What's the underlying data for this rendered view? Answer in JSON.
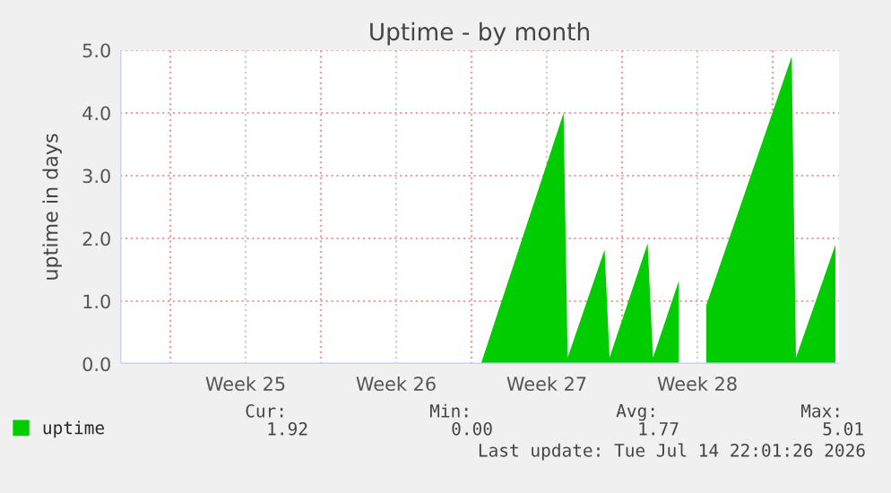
{
  "chart_data": {
    "type": "area",
    "title": "Uptime - by month",
    "ylabel": "uptime in days",
    "series": [
      {
        "name": "uptime",
        "color": "#00cc00",
        "x": [
          "2026-06-29T10:30",
          "2026-07-03T06:45",
          "2026-07-03T11:15",
          "2026-07-05T04:30",
          "2026-07-05T10:00",
          "2026-07-07T04:30",
          "2026-07-07T10:30",
          "2026-07-08T15:15",
          "2026-07-09T12:00",
          "2026-07-09T22:00",
          "2026-07-13T21:15",
          "2026-07-14T02:00",
          "2026-07-15T22:00"
        ],
        "values": [
          0,
          4.0,
          0.1,
          1.82,
          0.1,
          1.92,
          0.1,
          1.32,
          null,
          0.94,
          4.9,
          0.1,
          1.9
        ]
      }
    ],
    "xlim": [
      "2026-06-12T16:00",
      "2026-07-16T02:00"
    ],
    "xticks": [
      {
        "value": "2026-06-15",
        "label": null
      },
      {
        "value": "2026-06-18T12:00",
        "label": "Week 25"
      },
      {
        "value": "2026-06-22",
        "label": null
      },
      {
        "value": "2026-06-25T12:00",
        "label": "Week 26"
      },
      {
        "value": "2026-06-29",
        "label": null
      },
      {
        "value": "2026-07-02T12:00",
        "label": "Week 27"
      },
      {
        "value": "2026-07-06",
        "label": null
      },
      {
        "value": "2026-07-09T12:00",
        "label": "Week 28"
      },
      {
        "value": "2026-07-13",
        "label": null
      }
    ],
    "ylim": [
      0,
      5
    ],
    "yticks": [
      {
        "value": 0,
        "label": "0.0"
      },
      {
        "value": 1,
        "label": "1.0"
      },
      {
        "value": 2,
        "label": "2.0"
      },
      {
        "value": 3,
        "label": "3.0"
      },
      {
        "value": 4,
        "label": "4.0"
      },
      {
        "value": 5,
        "label": "5.0"
      }
    ],
    "grid": true,
    "legend": "bottom left",
    "annotations": [
      "Cur:",
      "Min:",
      "Avg:",
      "Max:",
      "1.92",
      "0.00",
      "1.77",
      "5.01",
      "Last update: Tue Jul 14 22:01:26 2026"
    ]
  }
}
